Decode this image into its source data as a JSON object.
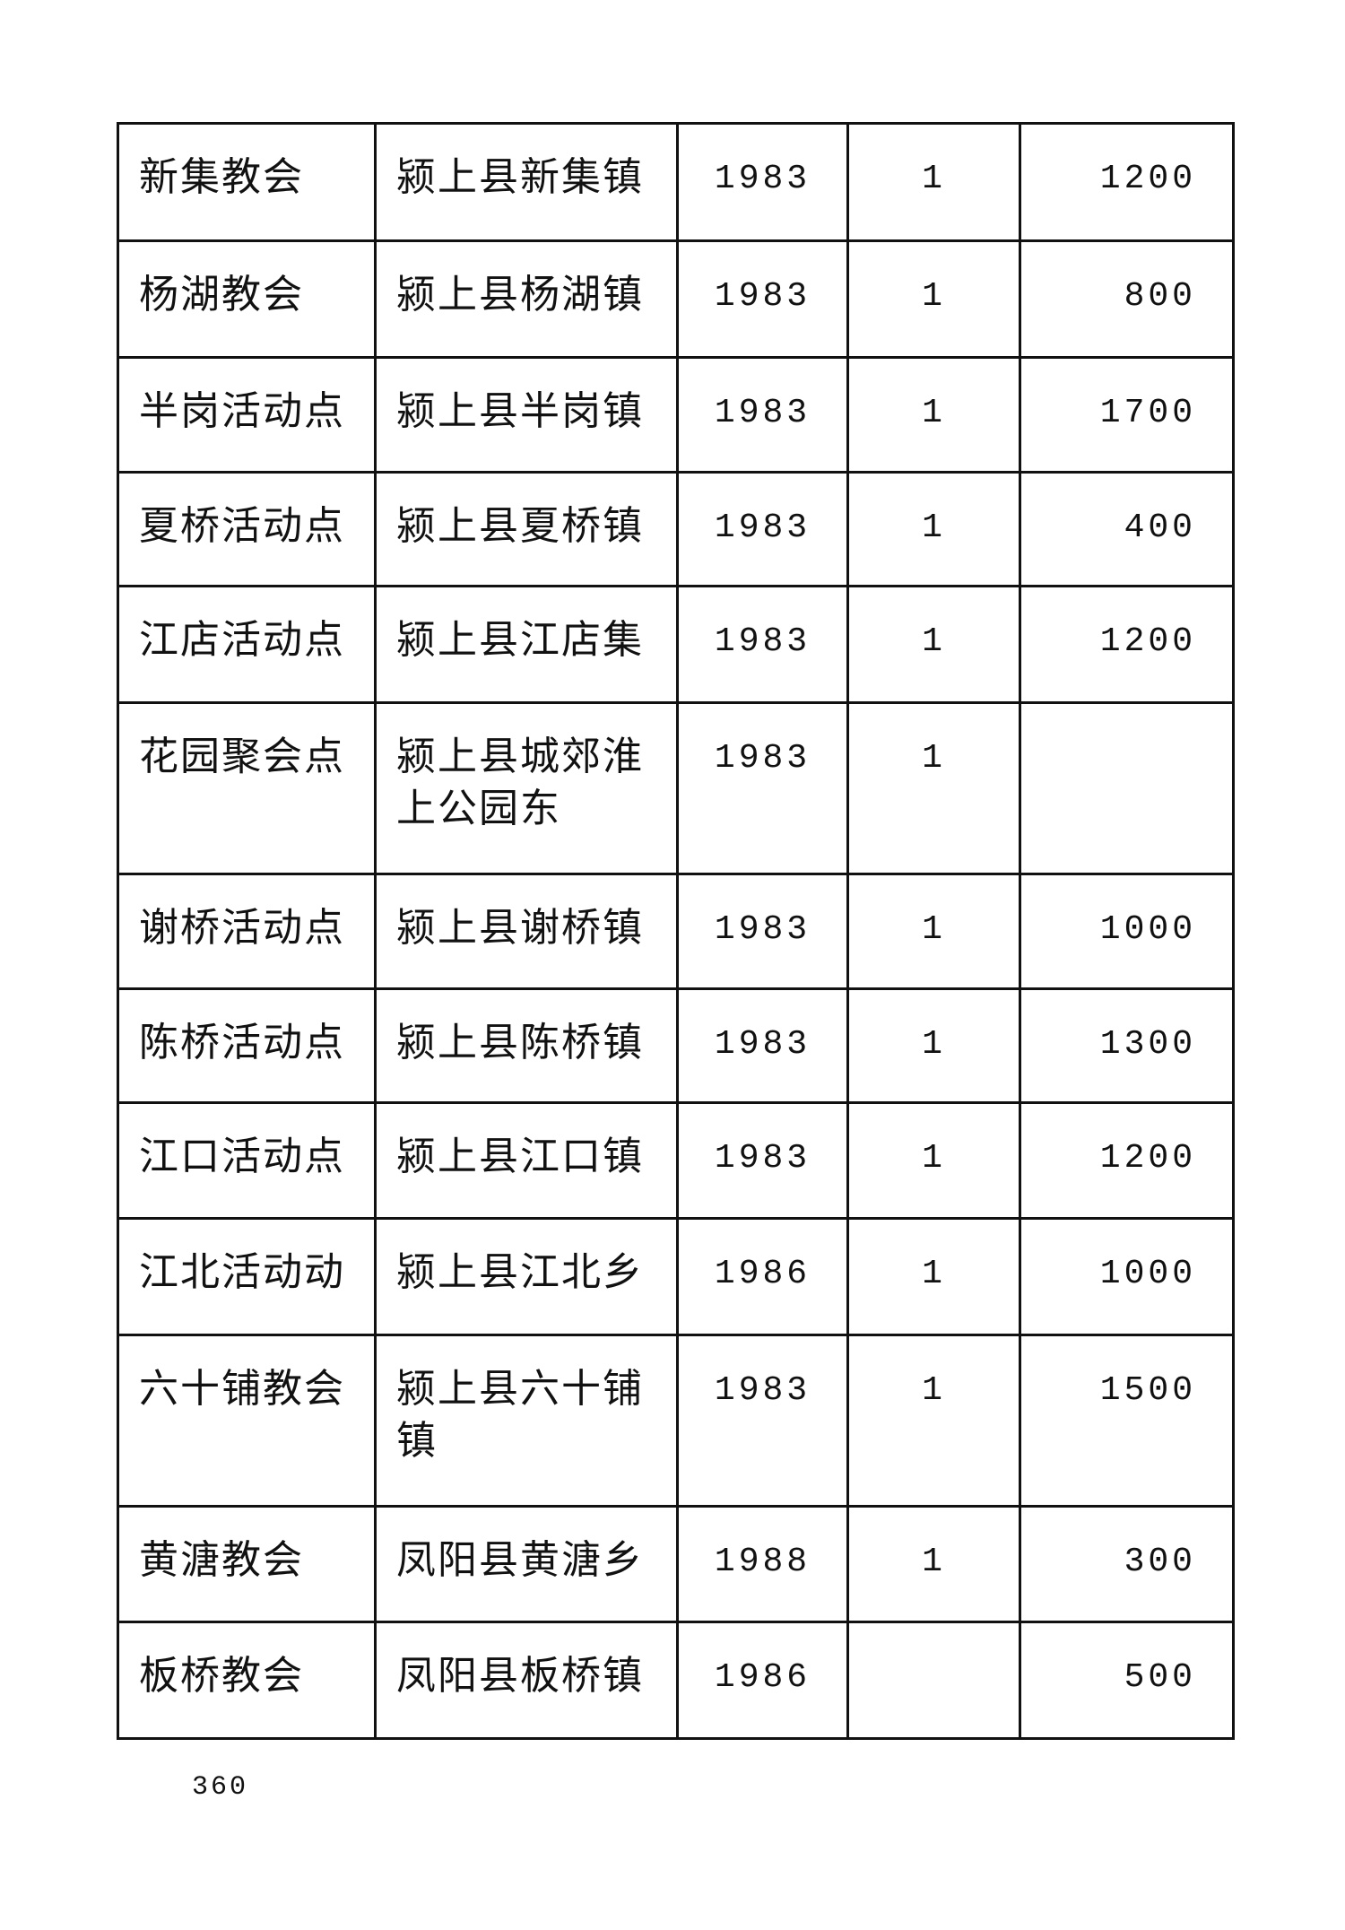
{
  "table": {
    "rows": [
      {
        "name": "新集教会",
        "location": "颍上县新集镇",
        "year": "1983",
        "number": "1",
        "members": "1200"
      },
      {
        "name": "杨湖教会",
        "location": "颍上县杨湖镇",
        "year": "1983",
        "number": "1",
        "members": "800"
      },
      {
        "name": "半岗活动点",
        "location": "颍上县半岗镇",
        "year": "1983",
        "number": "1",
        "members": "1700"
      },
      {
        "name": "夏桥活动点",
        "location": "颍上县夏桥镇",
        "year": "1983",
        "number": "1",
        "members": "400"
      },
      {
        "name": "江店活动点",
        "location": "颍上县江店集",
        "year": "1983",
        "number": "1",
        "members": "1200"
      },
      {
        "name": "花园聚会点",
        "location": "颍上县城郊淮上公园东",
        "year": "1983",
        "number": "1",
        "members": ""
      },
      {
        "name": "谢桥活动点",
        "location": "颍上县谢桥镇",
        "year": "1983",
        "number": "1",
        "members": "1000"
      },
      {
        "name": "陈桥活动点",
        "location": "颍上县陈桥镇",
        "year": "1983",
        "number": "1",
        "members": "1300"
      },
      {
        "name": "江口活动点",
        "location": "颍上县江口镇",
        "year": "1983",
        "number": "1",
        "members": "1200"
      },
      {
        "name": "江北活动动",
        "location": "颍上县江北乡",
        "year": "1986",
        "number": "1",
        "members": "1000"
      },
      {
        "name": "六十铺教会",
        "location": "颍上县六十铺镇",
        "year": "1983",
        "number": "1",
        "members": "1500"
      },
      {
        "name": "黄溏教会",
        "location": "凤阳县黄溏乡",
        "year": "1988",
        "number": "1",
        "members": "300"
      },
      {
        "name": "板桥教会",
        "location": "凤阳县板桥镇",
        "year": "1986",
        "number": "",
        "members": "500"
      }
    ]
  },
  "page_number": "360"
}
